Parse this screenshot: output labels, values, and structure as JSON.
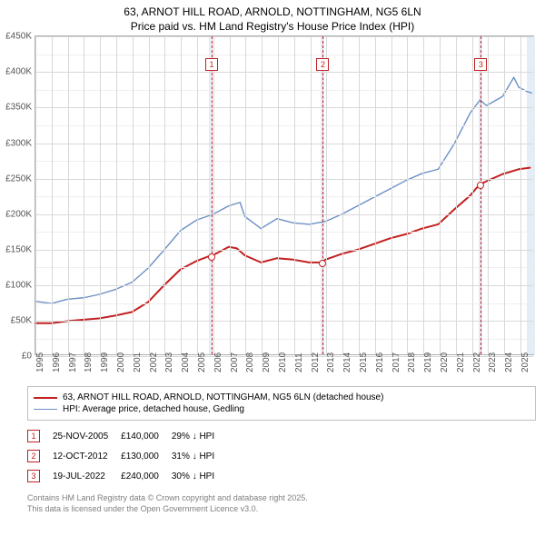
{
  "title_line1": "63, ARNOT HILL ROAD, ARNOLD, NOTTINGHAM, NG5 6LN",
  "title_line2": "Price paid vs. HM Land Registry's House Price Index (HPI)",
  "chart": {
    "type": "line",
    "xlim": [
      1995,
      2025.9
    ],
    "ylim": [
      0,
      450
    ],
    "xtick_step": 1,
    "ytick_step": 50,
    "yticks": [
      "£0",
      "£50K",
      "£100K",
      "£150K",
      "£200K",
      "£250K",
      "£300K",
      "£350K",
      "£400K",
      "£450K"
    ],
    "xticks": [
      "1995",
      "1996",
      "1997",
      "1998",
      "1999",
      "2000",
      "2001",
      "2002",
      "2003",
      "2004",
      "2005",
      "2006",
      "2007",
      "2008",
      "2009",
      "2010",
      "2011",
      "2012",
      "2013",
      "2014",
      "2015",
      "2016",
      "2017",
      "2018",
      "2019",
      "2020",
      "2021",
      "2022",
      "2023",
      "2024",
      "2025"
    ],
    "grid_color": "#d8d8d8",
    "minor_color": "#efefef",
    "band_color": "#e4ecf6",
    "bg_color": "#ffffff",
    "border_color": "#b0b0b0",
    "red_line": {
      "color": "#c22020",
      "width": 2,
      "points": [
        [
          1995,
          44
        ],
        [
          1996,
          44
        ],
        [
          1997,
          47
        ],
        [
          1998,
          49
        ],
        [
          1999,
          51
        ],
        [
          2000,
          55
        ],
        [
          2001,
          60
        ],
        [
          2002,
          74
        ],
        [
          2003,
          98
        ],
        [
          2004,
          120
        ],
        [
          2005,
          132
        ],
        [
          2005.9,
          140
        ],
        [
          2006,
          140
        ],
        [
          2007,
          152
        ],
        [
          2007.5,
          150
        ],
        [
          2008,
          140
        ],
        [
          2009,
          130
        ],
        [
          2010,
          136
        ],
        [
          2011,
          134
        ],
        [
          2012,
          130
        ],
        [
          2012.8,
          130
        ],
        [
          2013,
          134
        ],
        [
          2014,
          142
        ],
        [
          2015,
          148
        ],
        [
          2016,
          156
        ],
        [
          2017,
          164
        ],
        [
          2018,
          170
        ],
        [
          2019,
          178
        ],
        [
          2020,
          184
        ],
        [
          2021,
          205
        ],
        [
          2022,
          225
        ],
        [
          2022.55,
          240
        ],
        [
          2023,
          245
        ],
        [
          2024,
          255
        ],
        [
          2025,
          262
        ],
        [
          2025.7,
          264
        ]
      ]
    },
    "blue_line": {
      "color": "#6b90c6",
      "width": 1.4,
      "points": [
        [
          1995,
          75
        ],
        [
          1996,
          72
        ],
        [
          1997,
          78
        ],
        [
          1998,
          80
        ],
        [
          1999,
          85
        ],
        [
          2000,
          92
        ],
        [
          2001,
          102
        ],
        [
          2002,
          122
        ],
        [
          2003,
          148
        ],
        [
          2004,
          175
        ],
        [
          2005,
          190
        ],
        [
          2006,
          198
        ],
        [
          2007,
          210
        ],
        [
          2007.7,
          215
        ],
        [
          2008,
          195
        ],
        [
          2009,
          178
        ],
        [
          2010,
          192
        ],
        [
          2011,
          186
        ],
        [
          2012,
          184
        ],
        [
          2013,
          188
        ],
        [
          2014,
          198
        ],
        [
          2015,
          210
        ],
        [
          2016,
          222
        ],
        [
          2017,
          234
        ],
        [
          2018,
          246
        ],
        [
          2019,
          256
        ],
        [
          2020,
          262
        ],
        [
          2021,
          298
        ],
        [
          2022,
          342
        ],
        [
          2022.6,
          360
        ],
        [
          2023,
          352
        ],
        [
          2024,
          365
        ],
        [
          2024.7,
          392
        ],
        [
          2025,
          378
        ],
        [
          2025.5,
          372
        ],
        [
          2025.8,
          370
        ]
      ]
    },
    "vbands": [
      {
        "from": 2005.75,
        "to": 2005.98
      },
      {
        "from": 2012.62,
        "to": 2012.85
      },
      {
        "from": 2022.4,
        "to": 2022.63
      },
      {
        "from": 2025.4,
        "to": 2025.9
      }
    ],
    "markers": [
      {
        "n": "1",
        "x": 2005.9,
        "y": 140,
        "label_y": 420
      },
      {
        "n": "2",
        "x": 2012.78,
        "y": 130,
        "label_y": 420
      },
      {
        "n": "3",
        "x": 2022.55,
        "y": 240,
        "label_y": 420
      }
    ]
  },
  "legend": {
    "red": "63, ARNOT HILL ROAD, ARNOLD, NOTTINGHAM, NG5 6LN (detached house)",
    "blue": "HPI: Average price, detached house, Gedling"
  },
  "table": [
    {
      "n": "1",
      "date": "25-NOV-2005",
      "price": "£140,000",
      "delta": "29% ↓ HPI"
    },
    {
      "n": "2",
      "date": "12-OCT-2012",
      "price": "£130,000",
      "delta": "31% ↓ HPI"
    },
    {
      "n": "3",
      "date": "19-JUL-2022",
      "price": "£240,000",
      "delta": "30% ↓ HPI"
    }
  ],
  "footer1": "Contains HM Land Registry data © Crown copyright and database right 2025.",
  "footer2": "This data is licensed under the Open Government Licence v3.0."
}
